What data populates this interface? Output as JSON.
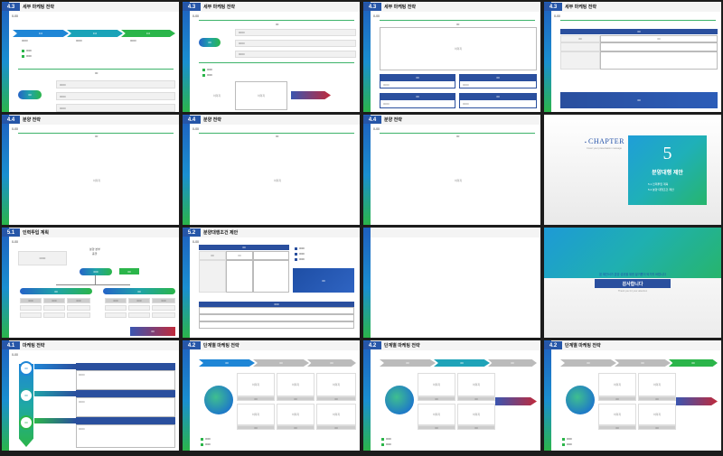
{
  "thumbnails": {
    "s1": {
      "num": "4.3",
      "title": "세부 마케팅 전략",
      "sub": "0-00",
      "step_labels": [
        "0.0",
        "0.0",
        "0.0"
      ],
      "step_captions": [
        "0000",
        "0000",
        "0000"
      ],
      "center_label": "00",
      "legend": [
        "0000",
        "0000"
      ],
      "pill": "00",
      "rows": [
        "0000",
        "0000",
        "0000"
      ]
    },
    "s2": {
      "num": "4.3",
      "title": "세부 마케팅 전략",
      "sub": "0-00",
      "center_label": "00",
      "pill": "00",
      "rows": [
        "0000",
        "0000",
        "0000"
      ],
      "legend": [
        "0000",
        "0000"
      ],
      "img1": "이미지",
      "img2": "이미지"
    },
    "s3": {
      "num": "4.3",
      "title": "세부 마케팅 전략",
      "sub": "0-00",
      "center_label": "00",
      "image": "이미지",
      "cards": [
        "00",
        "00",
        "00",
        "00"
      ],
      "card_text": "0000"
    },
    "s4": {
      "num": "4.3",
      "title": "세부 마케팅 전략",
      "sub": "0-00",
      "table_head": "00",
      "table_cell": "00",
      "footer": "00"
    },
    "s5": {
      "num": "4.4",
      "title": "분양 전략",
      "sub": "0-00",
      "center_label": "00",
      "image": "이미지"
    },
    "s6": {
      "num": "4.4",
      "title": "분양 전략",
      "sub": "0-00",
      "center_label": "00",
      "image": "이미지"
    },
    "s7": {
      "num": "4.4",
      "title": "분양 전략",
      "sub": "0-00",
      "center_label": "00",
      "image": "이미지"
    },
    "s8": {
      "chapter": "CHAPTER",
      "chapter_sub": "Cover your presentation message",
      "number": "5",
      "title": "분양대행 제안",
      "items": [
        "5.1 인력투입 계획",
        "5.2 분양 대행조건 제안"
      ]
    },
    "s9": {
      "num": "5.1",
      "title": "인력투입 계획",
      "sub": "0-00",
      "left_box": "0000",
      "top_label": "분양 본부",
      "top_sub": "총괄",
      "center_node": "000",
      "side_node": "00",
      "branch_left": "00",
      "branch_right": "00",
      "cells": [
        "000",
        "000",
        "000",
        "000",
        "000",
        "000"
      ],
      "footer": "00"
    },
    "s10": {
      "num": "5.2",
      "title": "분양대행조건 제안",
      "sub": "0-00",
      "head": [
        "00",
        "00",
        "00"
      ],
      "legend": [
        "0000",
        "0000",
        "0000"
      ],
      "blue_box": "00",
      "lower_head": "000"
    },
    "s11": {
      "num": "",
      "title": ""
    },
    "s12": {
      "thanks_line": "본 제안서가 분양 성공을 위한 밑거름이 되기를 바랍니다",
      "thanks": "감사합니다",
      "thanks_sub": "Thank you for your attention"
    },
    "s13": {
      "num": "4.1",
      "title": "마케팅 전략",
      "sub": "0-00",
      "steps": [
        "00",
        "00",
        "00"
      ],
      "bars": [
        "0000",
        "0000",
        "0000"
      ]
    },
    "s14": {
      "num": "4.2",
      "title": "단계별 마케팅 전략",
      "sub": "0-00",
      "chevrons": [
        "00",
        "00",
        "00"
      ],
      "image": "이미지",
      "caption": "00",
      "legend": [
        "0000",
        "0000"
      ]
    },
    "s15": {
      "num": "4.2",
      "title": "단계별 마케팅 전략",
      "sub": "0-00",
      "chevrons": [
        "00",
        "00",
        "00"
      ],
      "image": "이미지",
      "caption": "00",
      "legend": [
        "0000",
        "0000"
      ]
    },
    "s16": {
      "num": "4.2",
      "title": "단계별 마케팅 전략",
      "sub": "0-00",
      "chevrons": [
        "00",
        "00",
        "00"
      ],
      "image": "이미지",
      "caption": "00",
      "legend": [
        "0000",
        "0000"
      ]
    }
  },
  "colors": {
    "accent_blue": "#2a4f9e",
    "accent_green": "#2bb54a",
    "accent_red": "#c02a3b"
  }
}
